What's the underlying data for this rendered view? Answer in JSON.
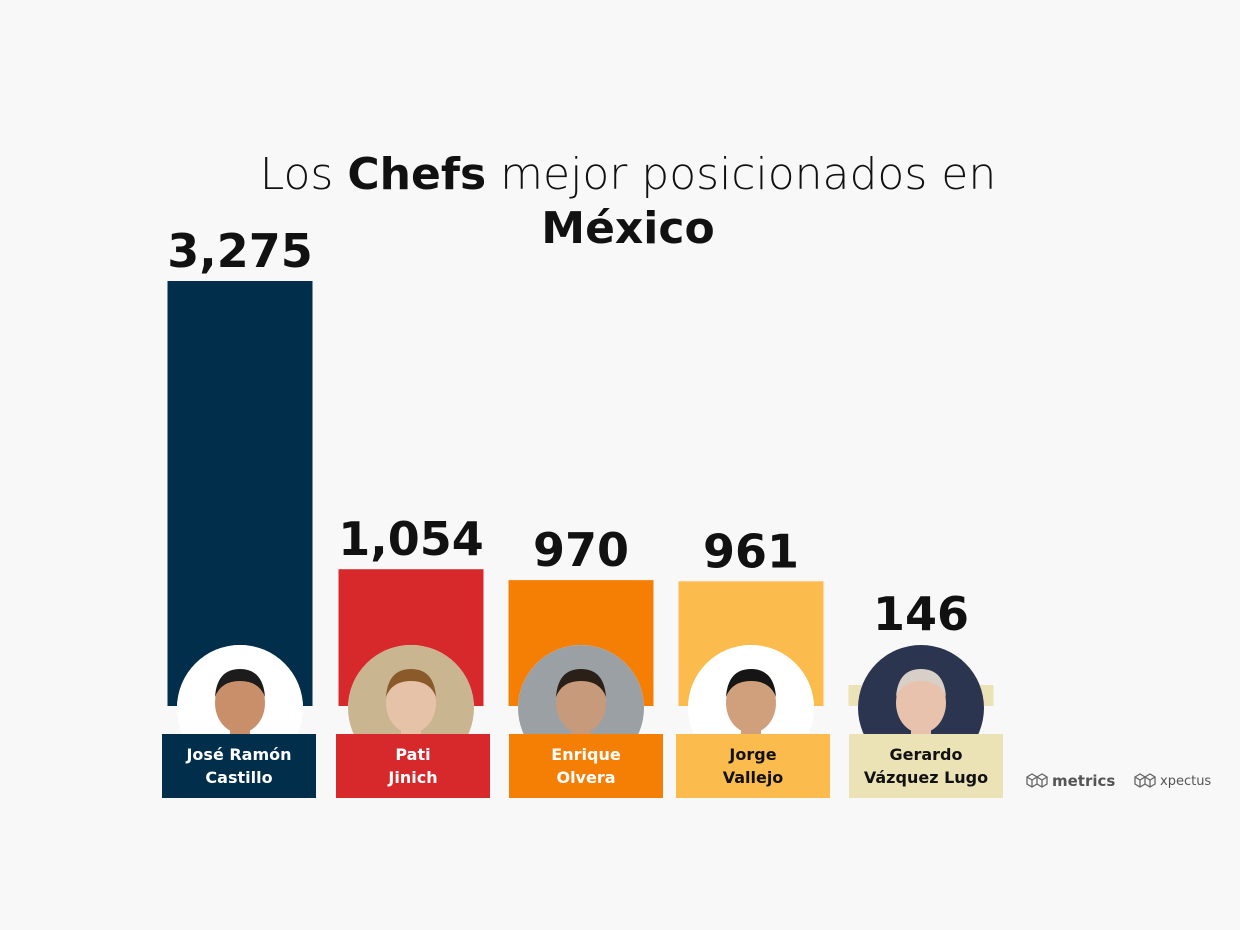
{
  "title": {
    "prefix": "Los",
    "bold1": "Chefs",
    "middle": "mejor posicionados en",
    "bold2": "México"
  },
  "chart_data": {
    "type": "bar",
    "categories": [
      "José Ramón Castillo",
      "Pati Jinich",
      "Enrique Olvera",
      "Jorge Vallejo",
      "Gerardo Vázquez Lugo"
    ],
    "values": [
      3275,
      1054,
      970,
      961,
      146
    ],
    "value_labels": [
      "3,275",
      "1,054",
      "970",
      "961",
      "146"
    ],
    "colors": [
      "#012e4a",
      "#d7282b",
      "#f57f04",
      "#fbbc4d",
      "#ebe2b6"
    ],
    "title": "Los Chefs mejor posicionados en México"
  },
  "chefs": [
    {
      "line1": "José Ramón",
      "line2": "Castillo",
      "text_color": "#ffffff",
      "box_color": "#012e4a"
    },
    {
      "line1": "Pati",
      "line2": "Jinich",
      "text_color": "#ffffff",
      "box_color": "#d7282b"
    },
    {
      "line1": "Enrique",
      "line2": "Olvera",
      "text_color": "#ffffff",
      "box_color": "#f57f04"
    },
    {
      "line1": "Jorge",
      "line2": "Vallejo",
      "text_color": "#111111",
      "box_color": "#fbbc4d"
    },
    {
      "line1": "Gerardo",
      "line2": "Vázquez Lugo",
      "text_color": "#111111",
      "box_color": "#ebe2b6"
    }
  ],
  "logos": {
    "left": "metrics",
    "right": "xpectus"
  }
}
